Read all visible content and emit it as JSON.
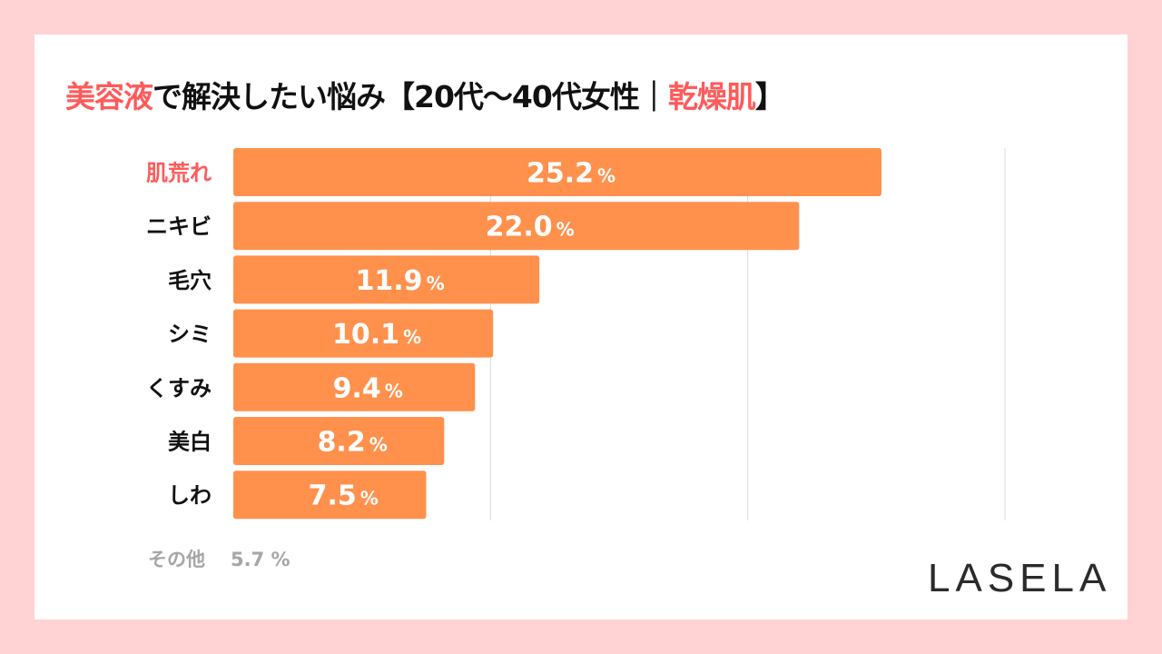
{
  "title": {
    "part1": "美容液",
    "part2": "で解決したい悩み【20代〜40代女性｜",
    "part3": "乾燥肌",
    "part4": "】"
  },
  "chart_data": {
    "type": "bar",
    "orientation": "horizontal",
    "categories": [
      "肌荒れ",
      "ニキビ",
      "毛穴",
      "シミ",
      "くすみ",
      "美白",
      "しわ"
    ],
    "values": [
      25.2,
      22.0,
      11.9,
      10.1,
      9.4,
      8.2,
      7.5
    ],
    "value_labels": [
      "25.2",
      "22.0",
      "11.9",
      "10.1",
      "9.4",
      "8.2",
      "7.5"
    ],
    "unit": "%",
    "xlim": [
      0,
      30
    ],
    "grid": true,
    "highlight_category": "肌荒れ",
    "colors": {
      "bar": "#ff914d",
      "highlight_text": "#ff5a5a",
      "label_text": "#111111",
      "grid": "#d9d9d9"
    }
  },
  "other": {
    "label": "その他",
    "value": "5.7 %"
  },
  "logo": "LASELA"
}
